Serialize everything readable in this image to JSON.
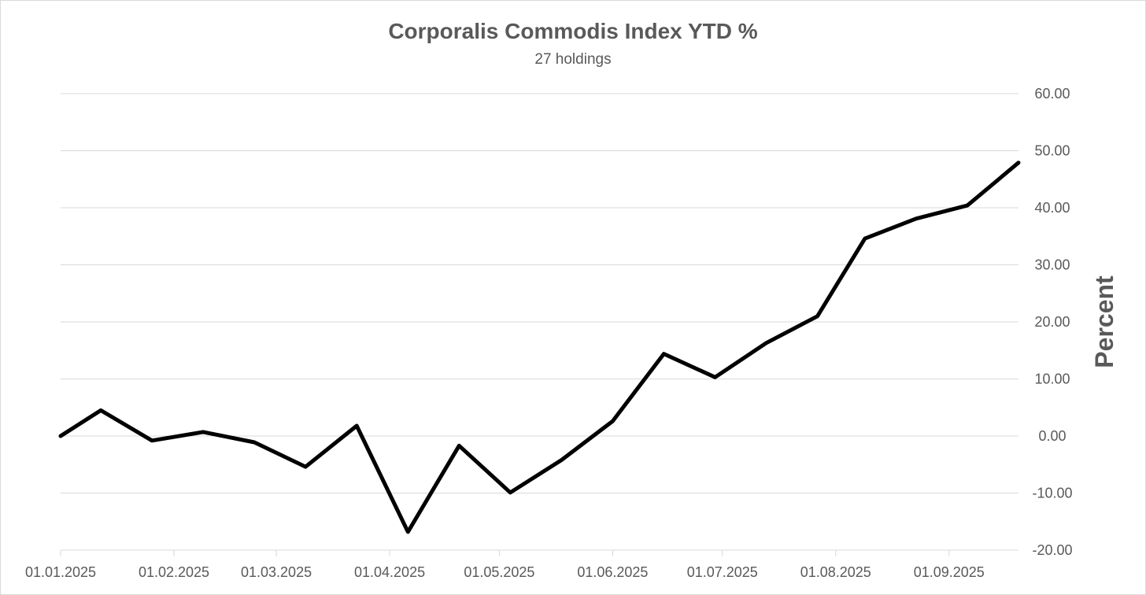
{
  "chart_data": {
    "type": "line",
    "title": "Corporalis Commodis Index YTD %",
    "subtitle": "27 holdings",
    "xlabel": "",
    "ylabel": "Percent",
    "ylim": [
      -20,
      60
    ],
    "y_ticks": [
      "60.00",
      "50.00",
      "40.00",
      "30.00",
      "20.00",
      "10.00",
      "0.00",
      "-10.00",
      "-20.00"
    ],
    "x_tick_labels": [
      "01.01.2025",
      "01.02.2025",
      "01.03.2025",
      "01.04.2025",
      "01.05.2025",
      "01.06.2025",
      "01.07.2025",
      "01.08.2025",
      "01.09.2025"
    ],
    "x_tick_days": [
      0,
      31,
      59,
      90,
      120,
      151,
      181,
      212,
      243
    ],
    "x_range_days": [
      0,
      262
    ],
    "grid": true,
    "legend": "none",
    "series": [
      {
        "name": "Corporalis Commodis Index YTD %",
        "color": "#000000",
        "points": [
          {
            "day": 0,
            "value": 0.0
          },
          {
            "day": 11,
            "value": 4.5
          },
          {
            "day": 25,
            "value": -0.8
          },
          {
            "day": 39,
            "value": 0.7
          },
          {
            "day": 53,
            "value": -1.1
          },
          {
            "day": 67,
            "value": -5.4
          },
          {
            "day": 81,
            "value": 1.8
          },
          {
            "day": 95,
            "value": -16.8
          },
          {
            "day": 109,
            "value": -1.7
          },
          {
            "day": 123,
            "value": -9.9
          },
          {
            "day": 137,
            "value": -4.2
          },
          {
            "day": 151,
            "value": 2.6
          },
          {
            "day": 165,
            "value": 14.4
          },
          {
            "day": 179,
            "value": 10.3
          },
          {
            "day": 193,
            "value": 16.3
          },
          {
            "day": 207,
            "value": 21.0
          },
          {
            "day": 220,
            "value": 34.6
          },
          {
            "day": 234,
            "value": 38.1
          },
          {
            "day": 248,
            "value": 40.4
          },
          {
            "day": 262,
            "value": 47.9
          }
        ]
      }
    ]
  }
}
